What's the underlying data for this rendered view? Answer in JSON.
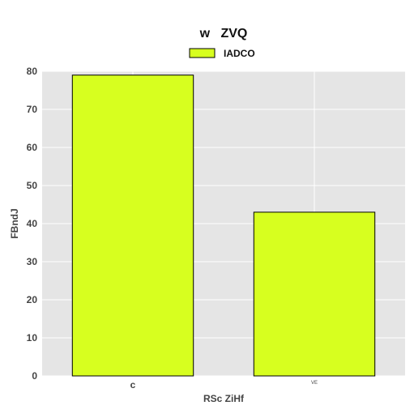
{
  "chart_data": {
    "type": "bar",
    "title": "w   ZVQ",
    "xlabel": "RSc ZiHf",
    "ylabel": "FBndJ",
    "categories": [
      "c",
      "VE"
    ],
    "series": [
      {
        "name": "IADCO",
        "values": [
          79,
          43
        ]
      }
    ],
    "ylim": [
      0,
      80
    ],
    "yticks": [
      0,
      10,
      20,
      30,
      40,
      50,
      60,
      70,
      80
    ],
    "grid": true,
    "legend": "top-center",
    "colors": {
      "bar": "#d7ff1f",
      "bar_stroke": "#000000",
      "plot_bg": "#e5e5e5",
      "grid": "#ffffff"
    }
  }
}
